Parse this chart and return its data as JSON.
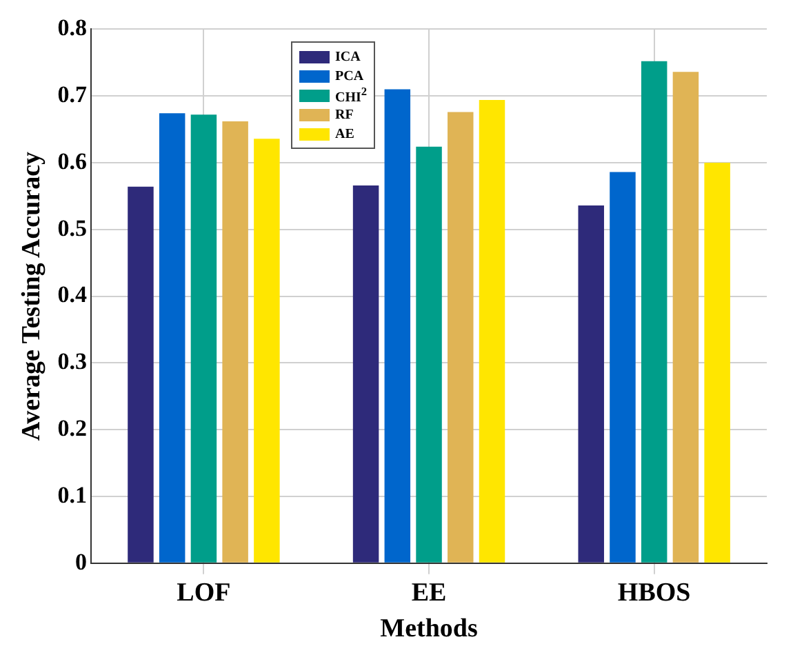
{
  "chart_data": {
    "type": "bar",
    "xlabel": "Methods",
    "ylabel": "Average Testing Accuracy",
    "categories": [
      "LOF",
      "EE",
      "HBOS"
    ],
    "series": [
      {
        "name": "ICA",
        "color": "#2e2a7a",
        "values": [
          0.564,
          0.566,
          0.536
        ]
      },
      {
        "name": "PCA",
        "color": "#0066cc",
        "values": [
          0.674,
          0.71,
          0.586
        ]
      },
      {
        "name": "CHI$^{2}$",
        "color": "#009e8a",
        "values": [
          0.672,
          0.624,
          0.752
        ]
      },
      {
        "name": "RF",
        "color": "#e0b455",
        "values": [
          0.662,
          0.676,
          0.736
        ]
      },
      {
        "name": "AE",
        "color": "#ffe600",
        "values": [
          0.636,
          0.694,
          0.6
        ]
      }
    ],
    "ylim": [
      0,
      0.8
    ],
    "yticks": [
      0,
      0.1,
      0.2,
      0.3,
      0.4,
      0.5,
      0.6,
      0.7,
      0.8
    ],
    "grid": true,
    "legend": "top"
  }
}
